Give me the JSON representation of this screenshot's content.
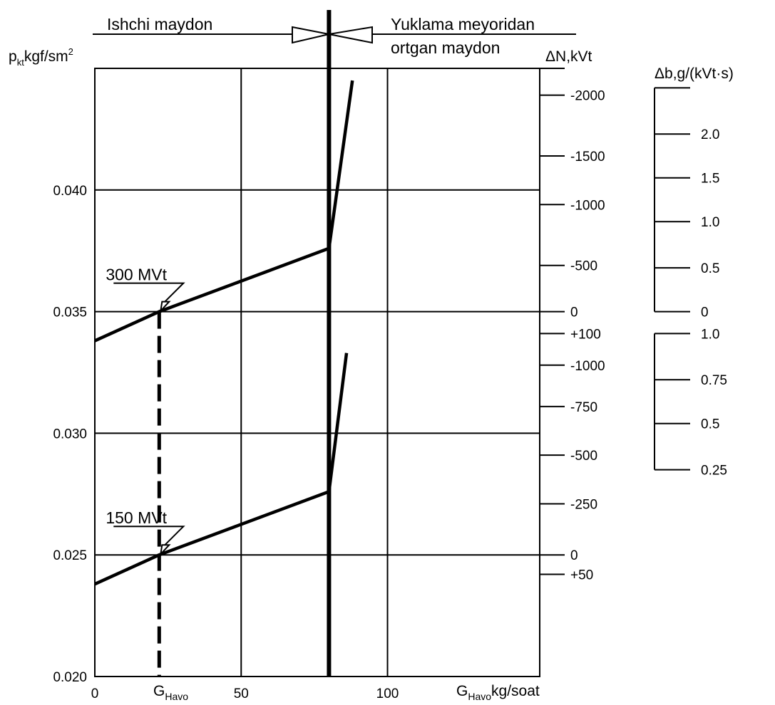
{
  "chart_data": {
    "type": "line",
    "header": {
      "left_zone": "Ishchi maydon",
      "right_zone_line1": "Yuklama meyoridan",
      "right_zone_line2": "ortgan maydon"
    },
    "y_axis": {
      "label_main": "p",
      "label_sub": "kt",
      "label_unit": "kgf/sm",
      "label_sup": "2",
      "ticks": [
        {
          "value": 0.02,
          "label": "0.020"
        },
        {
          "value": 0.025,
          "label": "0.025"
        },
        {
          "value": 0.03,
          "label": "0.030"
        },
        {
          "value": 0.035,
          "label": "0.035"
        },
        {
          "value": 0.04,
          "label": "0.040"
        }
      ],
      "ylim": [
        0.02,
        0.045
      ]
    },
    "x_axis": {
      "label_main": "G",
      "label_sub": "Havo",
      "label_unit": "kg/soat",
      "marker_main": "G",
      "marker_sub": "Havo",
      "marker_value": 22,
      "ticks": [
        {
          "value": 0,
          "label": "0"
        },
        {
          "value": 50,
          "label": "50"
        },
        {
          "value": 100,
          "label": "100"
        }
      ],
      "xlim": [
        0,
        152
      ],
      "boundary_value": 80
    },
    "dN_axis": {
      "label": "ΔN,kVt",
      "upper_ticks": [
        {
          "y": 0.0439,
          "label": "-2000"
        },
        {
          "y": 0.0414,
          "label": "-1500"
        },
        {
          "y": 0.0394,
          "label": "-1000"
        },
        {
          "y": 0.0369,
          "label": "-500"
        },
        {
          "y": 0.035,
          "label": "0"
        },
        {
          "y": 0.0341,
          "label": "+100"
        }
      ],
      "lower_ticks": [
        {
          "y": 0.0328,
          "label": "-1000"
        },
        {
          "y": 0.0311,
          "label": "-750"
        },
        {
          "y": 0.0291,
          "label": "-500"
        },
        {
          "y": 0.0271,
          "label": "-250"
        },
        {
          "y": 0.025,
          "label": "0"
        },
        {
          "y": 0.0242,
          "label": "+50"
        }
      ]
    },
    "db_axis": {
      "label": "Δb,g/(kVt·s)",
      "upper_ticks": [
        {
          "y": 0.0442,
          "label": ""
        },
        {
          "y": 0.0423,
          "label": "2.0"
        },
        {
          "y": 0.0405,
          "label": "1.5"
        },
        {
          "y": 0.0387,
          "label": "1.0"
        },
        {
          "y": 0.0368,
          "label": "0.5"
        },
        {
          "y": 0.035,
          "label": "0"
        }
      ],
      "lower_ticks": [
        {
          "y": 0.0341,
          "label": "1.0"
        },
        {
          "y": 0.0322,
          "label": "0.75"
        },
        {
          "y": 0.0304,
          "label": "0.5"
        },
        {
          "y": 0.0285,
          "label": "0.25"
        }
      ]
    },
    "series": [
      {
        "name": "300 MVt",
        "x": [
          0,
          22,
          80,
          88
        ],
        "y": [
          0.0338,
          0.035,
          0.0376,
          0.0445
        ]
      },
      {
        "name": "150 MVt",
        "x": [
          0,
          22,
          80,
          86
        ],
        "y": [
          0.0238,
          0.025,
          0.0276,
          0.0333
        ]
      }
    ],
    "grid": true
  }
}
